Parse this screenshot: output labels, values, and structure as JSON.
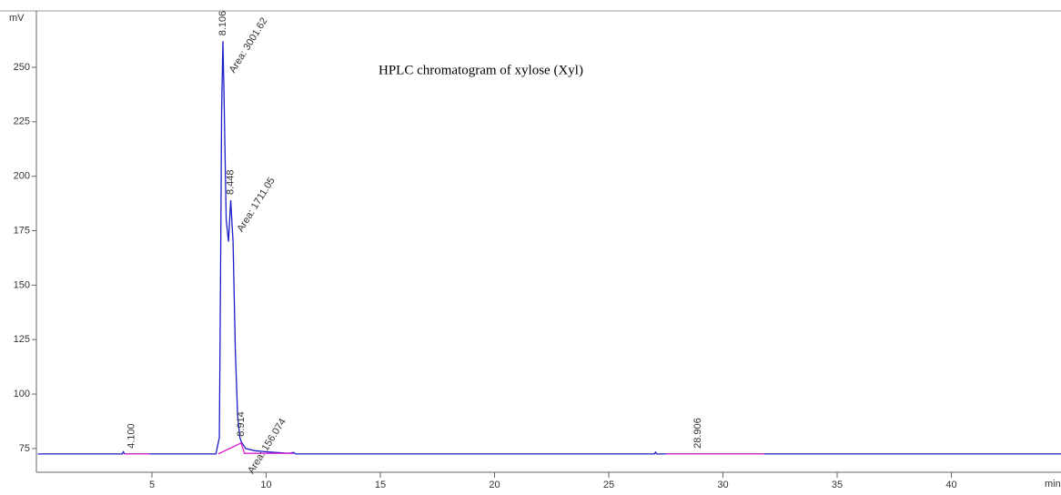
{
  "chart_data": {
    "type": "line",
    "title": "HPLC chromatogram of xylose (Xyl)",
    "x_label": "min",
    "y_label": "mV",
    "xlim": [
      0,
      44.8
    ],
    "ylim": [
      64.1,
      275.9
    ],
    "xticks": [
      5,
      10,
      15,
      20,
      25,
      30,
      35,
      40
    ],
    "yticks": [
      75,
      100,
      125,
      150,
      175,
      200,
      225,
      250
    ],
    "series": [
      {
        "color": "#1c1cc8",
        "x": [
          0,
          3.7,
          3.75,
          3.8,
          7.8,
          7.95,
          8.0,
          8.05,
          8.106,
          8.15,
          8.25,
          8.35,
          8.448,
          8.55,
          8.65,
          8.75,
          8.85,
          8.914,
          9.1,
          9.5,
          10,
          11,
          11.2,
          11.3,
          27,
          27.05,
          27.1,
          44.8
        ],
        "values": [
          72.5,
          72.5,
          73.5,
          72.5,
          72.5,
          80,
          150,
          230,
          262,
          240,
          180,
          170,
          189,
          170,
          120,
          90,
          80,
          78,
          75,
          74,
          73.5,
          72.8,
          73.2,
          72.5,
          72.5,
          73.3,
          72.5,
          72.5
        ]
      },
      {
        "color": "#e020d0",
        "x": [
          3.8,
          4.9,
          5.0,
          7.9,
          8.9,
          9.05,
          11.2,
          11.3,
          27.5,
          31.8
        ],
        "values": [
          72.5,
          72.5,
          null,
          72.5,
          77.5,
          72.8,
          72.8,
          null,
          72.5,
          72.5
        ]
      }
    ],
    "peaks": [
      {
        "rt": 4.1,
        "rt_label": "4.100"
      },
      {
        "rt": 8.106,
        "rt_label": "8.106",
        "area": 3001.62,
        "area_label": "Area: 3001.62"
      },
      {
        "rt": 8.448,
        "rt_label": "8.448",
        "area": 1711.05,
        "area_label": "Area: 1711.05"
      },
      {
        "rt": 8.914,
        "rt_label": "8.914",
        "area": 156.074,
        "area_label": "Area: 156.074"
      },
      {
        "rt": 28.906,
        "rt_label": "28.906"
      }
    ]
  }
}
